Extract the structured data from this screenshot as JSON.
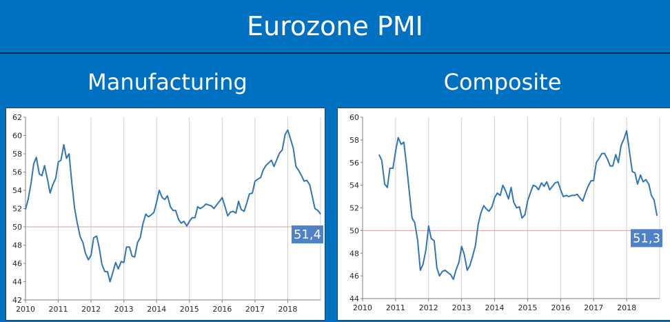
{
  "title": "Eurozone PMI",
  "chart_data": [
    {
      "type": "line",
      "title": "Manufacturing",
      "xlabel": "",
      "ylabel": "",
      "xlim": [
        2010.0,
        2019.0
      ],
      "ylim": [
        42,
        62
      ],
      "x_ticks": [
        "2010",
        "2011",
        "2012",
        "2013",
        "2014",
        "2015",
        "2016",
        "2017",
        "2018"
      ],
      "y_ticks": [
        42,
        44,
        46,
        48,
        50,
        52,
        54,
        56,
        58,
        60,
        62
      ],
      "reference_line": 50,
      "grid": "vertical",
      "line_color": "#2e75b6",
      "reference_color": "#d9a0a0",
      "last_value_label": "51,4",
      "series": [
        {
          "values": [
            [
              2010.0,
              51.9
            ],
            [
              2010.08,
              53.0
            ],
            [
              2010.17,
              54.8
            ],
            [
              2010.25,
              56.9
            ],
            [
              2010.33,
              57.6
            ],
            [
              2010.42,
              55.8
            ],
            [
              2010.5,
              55.6
            ],
            [
              2010.58,
              56.7
            ],
            [
              2010.67,
              55.2
            ],
            [
              2010.75,
              53.7
            ],
            [
              2010.83,
              54.6
            ],
            [
              2010.92,
              55.3
            ],
            [
              2011.0,
              57.1
            ],
            [
              2011.08,
              57.3
            ],
            [
              2011.17,
              59.0
            ],
            [
              2011.25,
              57.5
            ],
            [
              2011.33,
              58.0
            ],
            [
              2011.42,
              54.6
            ],
            [
              2011.5,
              52.0
            ],
            [
              2011.58,
              50.4
            ],
            [
              2011.67,
              48.9
            ],
            [
              2011.75,
              48.3
            ],
            [
              2011.83,
              47.1
            ],
            [
              2011.92,
              46.4
            ],
            [
              2012.0,
              46.9
            ],
            [
              2012.08,
              48.8
            ],
            [
              2012.17,
              49.0
            ],
            [
              2012.25,
              47.7
            ],
            [
              2012.33,
              45.9
            ],
            [
              2012.42,
              45.1
            ],
            [
              2012.5,
              45.1
            ],
            [
              2012.58,
              44.0
            ],
            [
              2012.67,
              45.1
            ],
            [
              2012.75,
              46.1
            ],
            [
              2012.83,
              45.4
            ],
            [
              2012.92,
              46.2
            ],
            [
              2013.0,
              46.1
            ],
            [
              2013.08,
              47.8
            ],
            [
              2013.17,
              47.8
            ],
            [
              2013.25,
              46.8
            ],
            [
              2013.33,
              46.7
            ],
            [
              2013.42,
              48.3
            ],
            [
              2013.5,
              48.8
            ],
            [
              2013.58,
              50.3
            ],
            [
              2013.67,
              51.4
            ],
            [
              2013.75,
              51.1
            ],
            [
              2013.83,
              51.3
            ],
            [
              2013.92,
              51.6
            ],
            [
              2014.0,
              52.7
            ],
            [
              2014.08,
              54.0
            ],
            [
              2014.17,
              53.2
            ],
            [
              2014.25,
              53.0
            ],
            [
              2014.33,
              53.4
            ],
            [
              2014.42,
              52.2
            ],
            [
              2014.5,
              51.8
            ],
            [
              2014.58,
              51.8
            ],
            [
              2014.67,
              50.8
            ],
            [
              2014.75,
              50.4
            ],
            [
              2014.83,
              50.6
            ],
            [
              2014.92,
              50.1
            ],
            [
              2015.0,
              50.6
            ],
            [
              2015.08,
              51.0
            ],
            [
              2015.17,
              51.0
            ],
            [
              2015.25,
              52.2
            ],
            [
              2015.33,
              52.0
            ],
            [
              2015.42,
              52.2
            ],
            [
              2015.5,
              52.5
            ],
            [
              2015.58,
              52.4
            ],
            [
              2015.67,
              52.3
            ],
            [
              2015.75,
              52.0
            ],
            [
              2015.83,
              52.4
            ],
            [
              2015.92,
              52.8
            ],
            [
              2016.0,
              53.2
            ],
            [
              2016.08,
              52.3
            ],
            [
              2016.17,
              51.2
            ],
            [
              2016.25,
              51.6
            ],
            [
              2016.33,
              51.7
            ],
            [
              2016.42,
              51.5
            ],
            [
              2016.5,
              52.8
            ],
            [
              2016.58,
              51.9
            ],
            [
              2016.67,
              51.7
            ],
            [
              2016.75,
              52.6
            ],
            [
              2016.83,
              53.6
            ],
            [
              2016.92,
              53.7
            ],
            [
              2017.0,
              55.0
            ],
            [
              2017.08,
              55.2
            ],
            [
              2017.17,
              55.4
            ],
            [
              2017.25,
              56.2
            ],
            [
              2017.33,
              56.7
            ],
            [
              2017.42,
              57.0
            ],
            [
              2017.5,
              57.3
            ],
            [
              2017.58,
              56.6
            ],
            [
              2017.67,
              57.4
            ],
            [
              2017.75,
              58.1
            ],
            [
              2017.83,
              58.4
            ],
            [
              2017.92,
              60.1
            ],
            [
              2018.0,
              60.6
            ],
            [
              2018.08,
              59.7
            ],
            [
              2018.17,
              58.6
            ],
            [
              2018.25,
              56.6
            ],
            [
              2018.33,
              56.2
            ],
            [
              2018.42,
              55.6
            ],
            [
              2018.5,
              55.0
            ],
            [
              2018.58,
              55.1
            ],
            [
              2018.67,
              54.6
            ],
            [
              2018.75,
              53.3
            ],
            [
              2018.83,
              52.0
            ],
            [
              2018.92,
              51.8
            ],
            [
              2019.0,
              51.4
            ]
          ]
        }
      ]
    },
    {
      "type": "line",
      "title": "Composite",
      "xlabel": "",
      "ylabel": "",
      "xlim": [
        2010.0,
        2019.0
      ],
      "ylim": [
        44,
        60
      ],
      "x_ticks": [
        "2010",
        "2011",
        "2012",
        "2013",
        "2014",
        "2015",
        "2016",
        "2017",
        "2018"
      ],
      "y_ticks": [
        44,
        46,
        48,
        50,
        52,
        54,
        56,
        58,
        60
      ],
      "reference_line": 50,
      "grid": "vertical",
      "line_color": "#2e75b6",
      "reference_color": "#d9a0a0",
      "last_value_label": "51,3",
      "series": [
        {
          "values": [
            [
              2010.5,
              56.7
            ],
            [
              2010.58,
              56.2
            ],
            [
              2010.67,
              54.1
            ],
            [
              2010.75,
              53.8
            ],
            [
              2010.83,
              55.5
            ],
            [
              2010.92,
              55.5
            ],
            [
              2011.0,
              57.0
            ],
            [
              2011.08,
              58.2
            ],
            [
              2011.17,
              57.6
            ],
            [
              2011.25,
              57.8
            ],
            [
              2011.33,
              55.8
            ],
            [
              2011.42,
              53.3
            ],
            [
              2011.5,
              51.1
            ],
            [
              2011.58,
              50.7
            ],
            [
              2011.67,
              49.1
            ],
            [
              2011.75,
              46.5
            ],
            [
              2011.83,
              47.0
            ],
            [
              2011.92,
              48.3
            ],
            [
              2012.0,
              50.4
            ],
            [
              2012.08,
              49.3
            ],
            [
              2012.17,
              49.1
            ],
            [
              2012.25,
              46.7
            ],
            [
              2012.33,
              46.0
            ],
            [
              2012.42,
              46.4
            ],
            [
              2012.5,
              46.5
            ],
            [
              2012.58,
              46.3
            ],
            [
              2012.67,
              46.1
            ],
            [
              2012.75,
              45.7
            ],
            [
              2012.83,
              46.5
            ],
            [
              2012.92,
              47.2
            ],
            [
              2013.0,
              48.6
            ],
            [
              2013.08,
              47.9
            ],
            [
              2013.17,
              46.5
            ],
            [
              2013.25,
              46.9
            ],
            [
              2013.33,
              47.7
            ],
            [
              2013.42,
              48.7
            ],
            [
              2013.5,
              50.5
            ],
            [
              2013.58,
              51.5
            ],
            [
              2013.67,
              52.2
            ],
            [
              2013.75,
              51.9
            ],
            [
              2013.83,
              51.7
            ],
            [
              2013.92,
              52.1
            ],
            [
              2014.0,
              52.9
            ],
            [
              2014.08,
              53.3
            ],
            [
              2014.17,
              53.1
            ],
            [
              2014.25,
              54.0
            ],
            [
              2014.33,
              53.5
            ],
            [
              2014.42,
              52.8
            ],
            [
              2014.5,
              53.8
            ],
            [
              2014.58,
              52.5
            ],
            [
              2014.67,
              52.0
            ],
            [
              2014.75,
              52.1
            ],
            [
              2014.83,
              51.1
            ],
            [
              2014.92,
              51.4
            ],
            [
              2015.0,
              52.6
            ],
            [
              2015.08,
              53.3
            ],
            [
              2015.17,
              54.0
            ],
            [
              2015.25,
              53.9
            ],
            [
              2015.33,
              53.6
            ],
            [
              2015.42,
              54.2
            ],
            [
              2015.5,
              53.9
            ],
            [
              2015.58,
              54.3
            ],
            [
              2015.67,
              53.6
            ],
            [
              2015.75,
              53.9
            ],
            [
              2015.83,
              54.2
            ],
            [
              2015.92,
              54.3
            ],
            [
              2016.0,
              53.6
            ],
            [
              2016.08,
              53.0
            ],
            [
              2016.17,
              53.1
            ],
            [
              2016.25,
              53.0
            ],
            [
              2016.33,
              53.1
            ],
            [
              2016.42,
              53.1
            ],
            [
              2016.5,
              53.2
            ],
            [
              2016.58,
              52.9
            ],
            [
              2016.67,
              52.6
            ],
            [
              2016.75,
              53.3
            ],
            [
              2016.83,
              53.9
            ],
            [
              2016.92,
              54.4
            ],
            [
              2017.0,
              54.4
            ],
            [
              2017.08,
              56.0
            ],
            [
              2017.17,
              56.4
            ],
            [
              2017.25,
              56.8
            ],
            [
              2017.33,
              56.8
            ],
            [
              2017.42,
              56.3
            ],
            [
              2017.5,
              55.7
            ],
            [
              2017.58,
              55.7
            ],
            [
              2017.67,
              56.7
            ],
            [
              2017.75,
              56.0
            ],
            [
              2017.83,
              57.5
            ],
            [
              2017.92,
              58.1
            ],
            [
              2018.0,
              58.8
            ],
            [
              2018.08,
              57.1
            ],
            [
              2018.17,
              55.2
            ],
            [
              2018.25,
              55.1
            ],
            [
              2018.33,
              54.1
            ],
            [
              2018.42,
              54.9
            ],
            [
              2018.5,
              54.3
            ],
            [
              2018.58,
              54.5
            ],
            [
              2018.67,
              54.1
            ],
            [
              2018.75,
              53.1
            ],
            [
              2018.83,
              52.7
            ],
            [
              2018.92,
              51.3
            ]
          ]
        }
      ]
    }
  ]
}
